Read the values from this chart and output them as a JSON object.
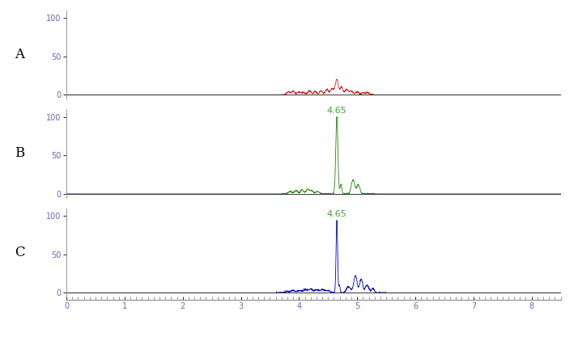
{
  "xlim": [
    0,
    8.5
  ],
  "ylim": [
    -5,
    110
  ],
  "yticks": [
    0,
    50,
    100
  ],
  "xticks": [
    0,
    1,
    2,
    3,
    4,
    5,
    6,
    7,
    8
  ],
  "panel_labels": [
    "A",
    "B",
    "C"
  ],
  "peak_label": "4.65",
  "peak_label_color": "#33aa33",
  "panel_A_color": "#cc2222",
  "panel_B_color": "#228800",
  "panel_C_color": "#0000cc",
  "label_fontsize": 12,
  "tick_fontsize": 7,
  "annotation_fontsize": 8,
  "tick_color": "#6666bb"
}
